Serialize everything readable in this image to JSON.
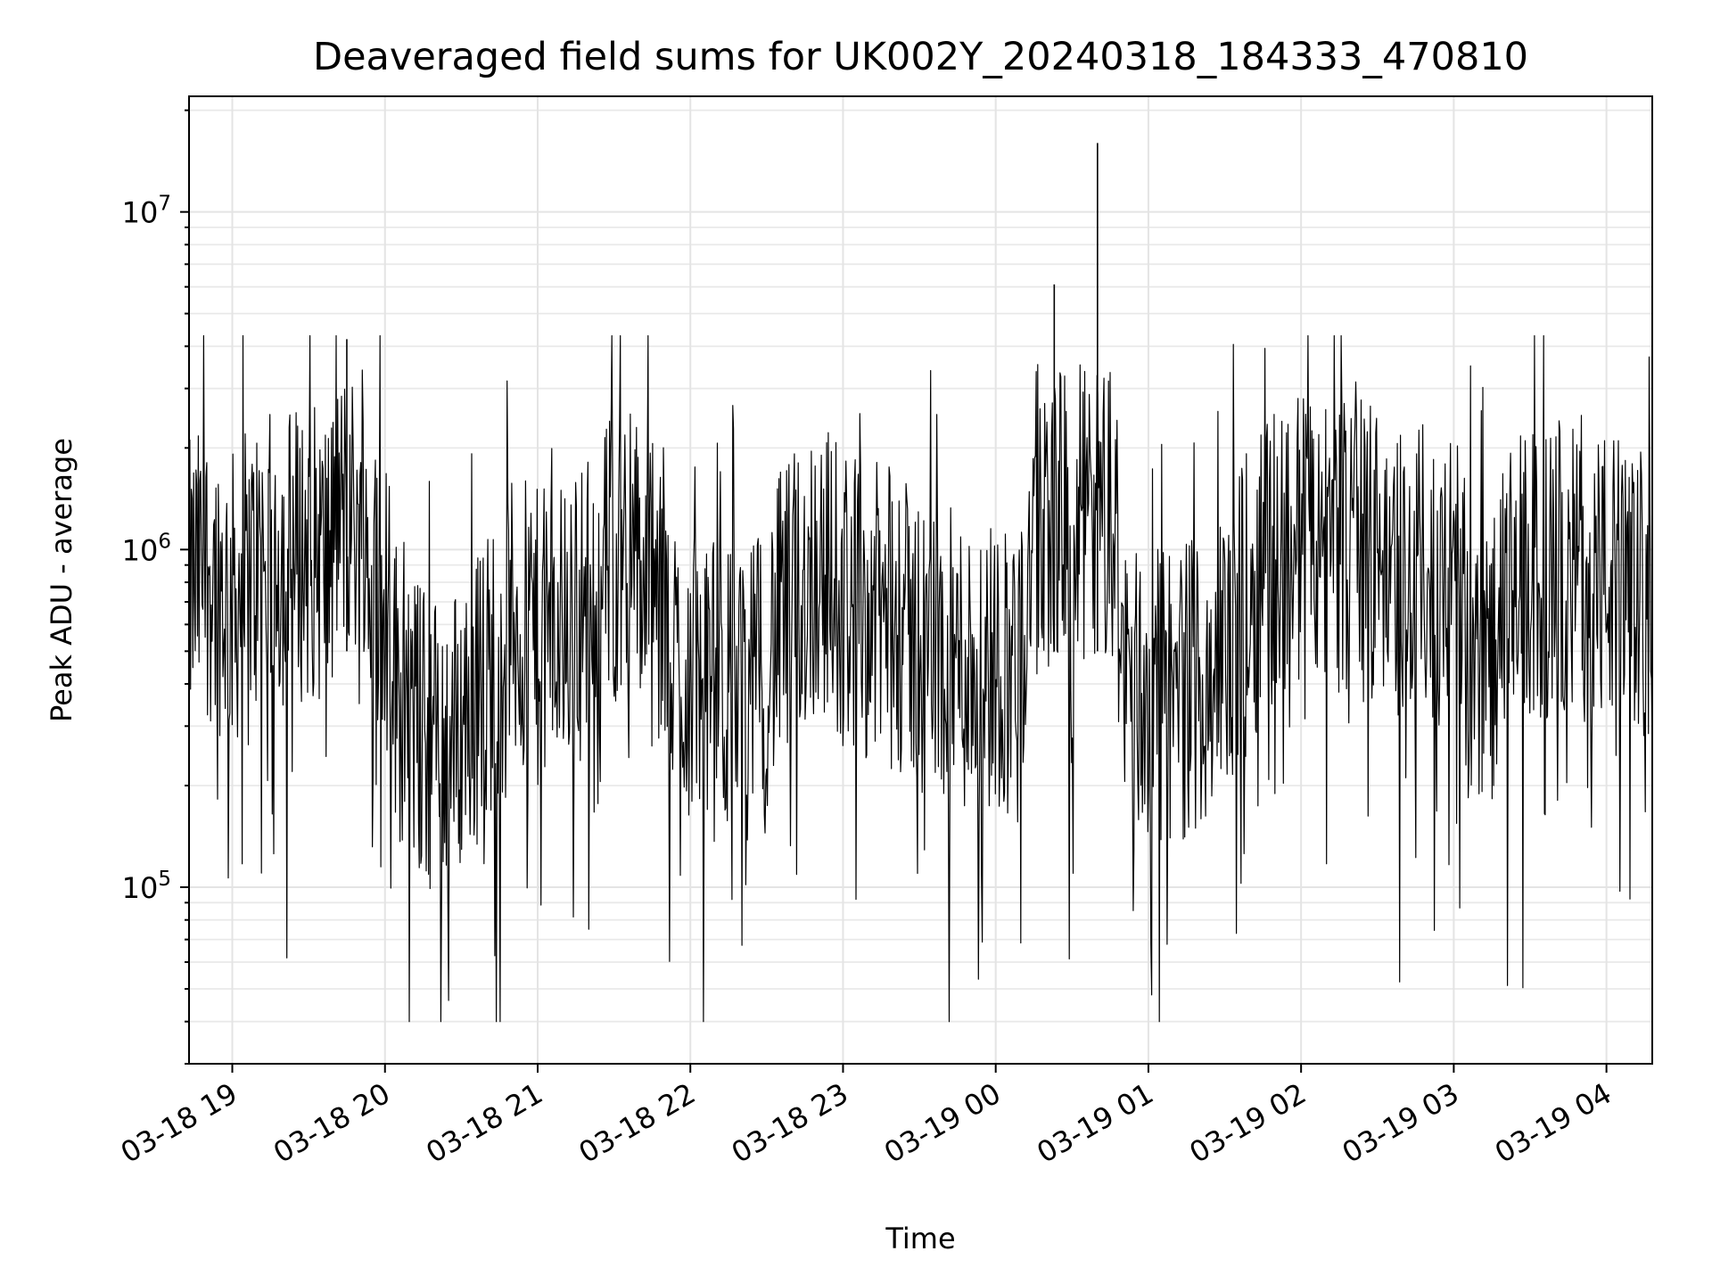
{
  "chart_data": {
    "type": "line",
    "title": "Deaveraged field sums for UK002Y_20240318_184333_470810",
    "xlabel": "Time",
    "ylabel": "Peak ADU - average",
    "yscale": "log",
    "ylim": [
      30000,
      22000000
    ],
    "xlim": [
      "2024-03-18 18:43",
      "2024-03-19 04:18"
    ],
    "x_ticks": [
      "03-18 19",
      "03-18 20",
      "03-18 21",
      "03-18 22",
      "03-18 23",
      "03-19 00",
      "03-19 01",
      "03-19 02",
      "03-19 03",
      "03-19 04"
    ],
    "x_tick_times": [
      "2024-03-18 19:00",
      "2024-03-18 20:00",
      "2024-03-18 21:00",
      "2024-03-18 22:00",
      "2024-03-18 23:00",
      "2024-03-19 00:00",
      "2024-03-19 01:00",
      "2024-03-19 02:00",
      "2024-03-19 03:00",
      "2024-03-19 04:00"
    ],
    "y_ticks": [
      {
        "base": "10",
        "exp": "5",
        "value": 100000
      },
      {
        "base": "10",
        "exp": "6",
        "value": 1000000
      },
      {
        "base": "10",
        "exp": "7",
        "value": 10000000
      }
    ],
    "grid": true,
    "series": [
      {
        "color": "#000000",
        "x": [
          "2024-03-18 18:43",
          "2024-03-18 18:50",
          "2024-03-18 19:00",
          "2024-03-18 19:10",
          "2024-03-18 19:20",
          "2024-03-18 19:30",
          "2024-03-18 19:40",
          "2024-03-18 19:45",
          "2024-03-18 19:50",
          "2024-03-18 20:00",
          "2024-03-18 20:05",
          "2024-03-18 20:15",
          "2024-03-18 20:25",
          "2024-03-18 20:40",
          "2024-03-18 20:50",
          "2024-03-18 21:00",
          "2024-03-18 21:15",
          "2024-03-18 21:30",
          "2024-03-18 21:35",
          "2024-03-18 21:45",
          "2024-03-18 21:55",
          "2024-03-18 22:10",
          "2024-03-18 22:25",
          "2024-03-18 22:35",
          "2024-03-18 22:50",
          "2024-03-18 23:05",
          "2024-03-18 23:20",
          "2024-03-18 23:35",
          "2024-03-18 23:50",
          "2024-03-19 00:10",
          "2024-03-19 00:23",
          "2024-03-19 00:30",
          "2024-03-19 00:40",
          "2024-03-19 00:50",
          "2024-03-19 01:00",
          "2024-03-19 01:15",
          "2024-03-19 01:30",
          "2024-03-19 01:45",
          "2024-03-19 02:00",
          "2024-03-19 02:15",
          "2024-03-19 02:30",
          "2024-03-19 02:45",
          "2024-03-19 03:00",
          "2024-03-19 03:10",
          "2024-03-19 03:25",
          "2024-03-19 03:40",
          "2024-03-19 03:55",
          "2024-03-19 04:10",
          "2024-03-19 04:18"
        ],
        "y": [
          750000,
          880000,
          700000,
          900000,
          950000,
          1000000,
          920000,
          4200000,
          900000,
          760000,
          380000,
          280000,
          260000,
          420000,
          600000,
          540000,
          620000,
          950000,
          1100000,
          700000,
          450000,
          380000,
          380000,
          600000,
          900000,
          700000,
          600000,
          500000,
          450000,
          470000,
          6100000,
          480000,
          16000000,
          420000,
          360000,
          390000,
          480000,
          900000,
          1100000,
          1050000,
          950000,
          830000,
          850000,
          400000,
          800000,
          820000,
          850000,
          750000,
          650000
        ]
      }
    ]
  }
}
